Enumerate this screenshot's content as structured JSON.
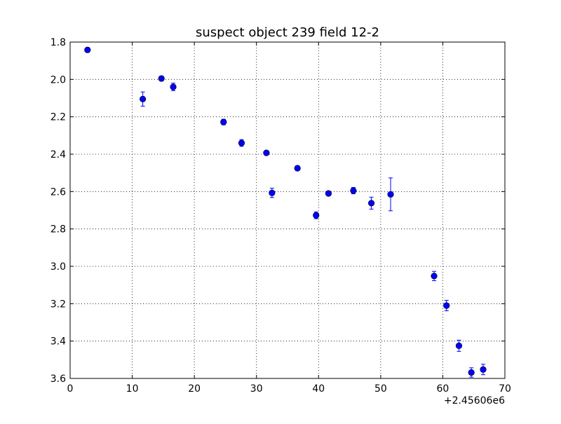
{
  "chart_data": {
    "type": "scatter",
    "title": "suspect object 239 field 12-2",
    "xlabel": "",
    "ylabel": "",
    "x_offset_label": "+2.45606e6",
    "xlim": [
      0,
      70
    ],
    "ylim": [
      1.8,
      3.6
    ],
    "y_inverted": true,
    "grid": true,
    "grid_style": "dotted",
    "legend": "none",
    "marker_color": "#0000ff",
    "errorbar_color": "#0000ff",
    "x_ticks": [
      "0",
      "10",
      "20",
      "30",
      "40",
      "50",
      "60",
      "70"
    ],
    "y_ticks": [
      "1.8",
      "2.0",
      "2.2",
      "2.4",
      "2.6",
      "2.8",
      "3.0",
      "3.2",
      "3.4",
      "3.6"
    ],
    "points": [
      {
        "x": 2.8,
        "y": 1.842,
        "err": 0.012
      },
      {
        "x": 11.7,
        "y": 2.105,
        "err": 0.038
      },
      {
        "x": 14.7,
        "y": 1.995,
        "err": 0.012
      },
      {
        "x": 16.6,
        "y": 2.04,
        "err": 0.02
      },
      {
        "x": 24.7,
        "y": 2.228,
        "err": 0.015
      },
      {
        "x": 27.6,
        "y": 2.34,
        "err": 0.018
      },
      {
        "x": 31.6,
        "y": 2.393,
        "err": 0.012
      },
      {
        "x": 32.5,
        "y": 2.607,
        "err": 0.025
      },
      {
        "x": 36.6,
        "y": 2.475,
        "err": 0.012
      },
      {
        "x": 39.6,
        "y": 2.727,
        "err": 0.018
      },
      {
        "x": 41.6,
        "y": 2.61,
        "err": 0.012
      },
      {
        "x": 45.6,
        "y": 2.595,
        "err": 0.017
      },
      {
        "x": 48.5,
        "y": 2.662,
        "err": 0.032
      },
      {
        "x": 51.6,
        "y": 2.615,
        "err": 0.088
      },
      {
        "x": 58.6,
        "y": 3.052,
        "err": 0.025
      },
      {
        "x": 60.6,
        "y": 3.21,
        "err": 0.028
      },
      {
        "x": 62.6,
        "y": 3.425,
        "err": 0.03
      },
      {
        "x": 64.6,
        "y": 3.568,
        "err": 0.025
      },
      {
        "x": 66.5,
        "y": 3.552,
        "err": 0.028
      }
    ]
  }
}
